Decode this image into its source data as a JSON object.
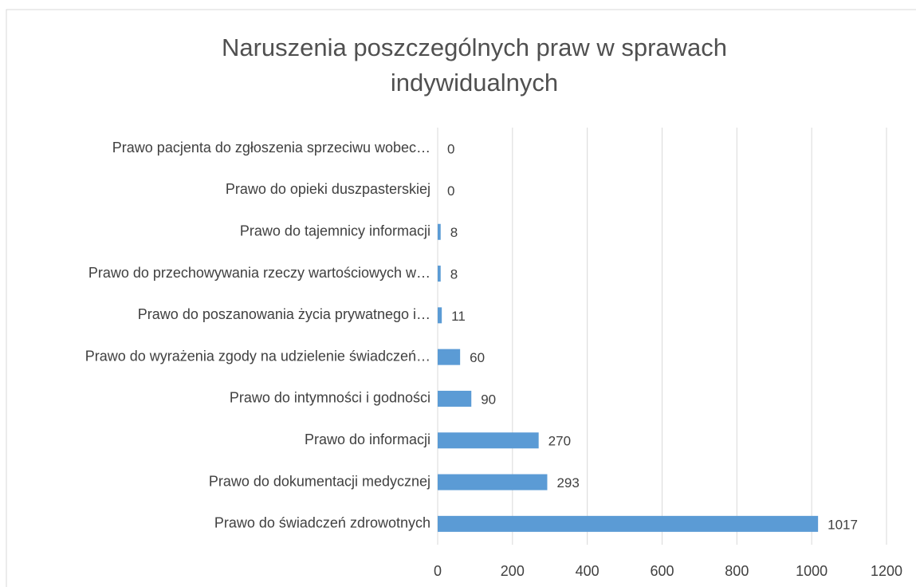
{
  "chart_data": {
    "type": "bar",
    "orientation": "horizontal",
    "title": "Naruszenia poszczególnych praw w sprawach indywidualnych",
    "categories": [
      "Prawo pacjenta do zgłoszenia sprzeciwu wobec…",
      "Prawo do opieki duszpasterskiej",
      "Prawo do tajemnicy informacji",
      "Prawo do przechowywania rzeczy wartościowych w…",
      "Prawo do poszanowania życia prywatnego i…",
      "Prawo do wyrażenia zgody na udzielenie świadczeń…",
      "Prawo do intymności i godności",
      "Prawo do informacji",
      "Prawo do dokumentacji medycznej",
      "Prawo do świadczeń zdrowotnych"
    ],
    "values": [
      0,
      0,
      8,
      8,
      11,
      60,
      90,
      270,
      293,
      1017
    ],
    "color": "#5b9bd5",
    "xlim": [
      0,
      1200
    ],
    "xticks": [
      0,
      200,
      400,
      600,
      800,
      1000,
      1200
    ],
    "grid": true
  }
}
